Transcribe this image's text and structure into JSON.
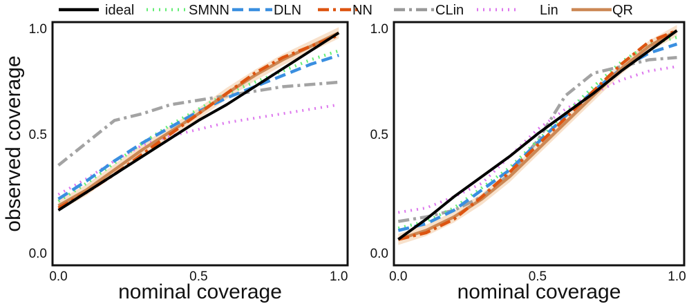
{
  "legend": [
    {
      "key": "ideal",
      "label": "ideal",
      "color": "#000000",
      "dash": "solid"
    },
    {
      "key": "smnn",
      "label": "SMNN",
      "color": "#66ee77",
      "dash": "dot"
    },
    {
      "key": "dln",
      "label": "DLN",
      "color": "#3a8fe0",
      "dash": "dash"
    },
    {
      "key": "nn",
      "label": "NN",
      "color": "#dd5511",
      "dash": "dashdot"
    },
    {
      "key": "clin",
      "label": "CLin",
      "color": "#999999",
      "dash": "dashdot"
    },
    {
      "key": "lin",
      "label": "Lin",
      "color": "#dd77ee",
      "dash": "dot"
    },
    {
      "key": "qr",
      "label": "QR",
      "color": "#cc8855",
      "dash": "solid"
    }
  ],
  "chart_data": [
    {
      "type": "line",
      "panel": "left",
      "title": "",
      "xlabel": "nominal coverage",
      "ylabel": "observed  coverage",
      "xlim": [
        0,
        1
      ],
      "ylim": [
        0,
        1
      ],
      "xticks": [
        "0.0",
        "0.5",
        "1.0"
      ],
      "yticks": [
        "0.0",
        "0.5",
        "1.0"
      ],
      "x": [
        0.0,
        0.1,
        0.2,
        0.3,
        0.4,
        0.5,
        0.6,
        0.7,
        0.8,
        0.9,
        1.0
      ],
      "series": [
        {
          "key": "clin",
          "name": "CLin",
          "values": [
            0.39,
            0.49,
            0.59,
            0.62,
            0.66,
            0.68,
            0.7,
            0.72,
            0.74,
            0.75,
            0.76
          ]
        },
        {
          "key": "lin",
          "name": "Lin",
          "values": [
            0.26,
            0.33,
            0.41,
            0.48,
            0.52,
            0.55,
            0.58,
            0.6,
            0.62,
            0.64,
            0.66
          ]
        },
        {
          "key": "smnn",
          "name": "SMNN",
          "values": [
            0.23,
            0.31,
            0.4,
            0.49,
            0.57,
            0.64,
            0.71,
            0.76,
            0.81,
            0.86,
            0.9
          ]
        },
        {
          "key": "dln",
          "name": "DLN",
          "values": [
            0.24,
            0.32,
            0.41,
            0.49,
            0.56,
            0.63,
            0.69,
            0.74,
            0.79,
            0.84,
            0.88
          ]
        },
        {
          "key": "qr",
          "name": "QR",
          "values": [
            0.21,
            0.28,
            0.37,
            0.46,
            0.54,
            0.62,
            0.71,
            0.79,
            0.86,
            0.92,
            0.98
          ]
        },
        {
          "key": "nn",
          "name": "NN",
          "values": [
            0.2,
            0.27,
            0.35,
            0.44,
            0.53,
            0.62,
            0.71,
            0.8,
            0.87,
            0.92,
            0.97
          ]
        },
        {
          "key": "ideal",
          "name": "ideal",
          "values": [
            0.19,
            0.27,
            0.35,
            0.43,
            0.51,
            0.59,
            0.66,
            0.74,
            0.82,
            0.9,
            0.98
          ]
        }
      ]
    },
    {
      "type": "line",
      "panel": "right",
      "title": "",
      "xlabel": "nominal coverage",
      "ylabel": "",
      "xlim": [
        0,
        1
      ],
      "ylim": [
        0,
        1
      ],
      "xticks": [
        "0.0",
        "0.5",
        "1.0"
      ],
      "yticks": [
        "0.0",
        "0.5",
        "1.0"
      ],
      "x": [
        0.0,
        0.1,
        0.2,
        0.3,
        0.4,
        0.5,
        0.6,
        0.7,
        0.8,
        0.9,
        1.0
      ],
      "series": [
        {
          "key": "clin",
          "name": "CLin",
          "values": [
            0.14,
            0.16,
            0.19,
            0.25,
            0.35,
            0.5,
            0.7,
            0.8,
            0.83,
            0.86,
            0.87
          ]
        },
        {
          "key": "lin",
          "name": "Lin",
          "values": [
            0.18,
            0.2,
            0.25,
            0.31,
            0.43,
            0.55,
            0.64,
            0.71,
            0.77,
            0.81,
            0.83
          ]
        },
        {
          "key": "smnn",
          "name": "SMNN",
          "values": [
            0.11,
            0.14,
            0.2,
            0.29,
            0.38,
            0.5,
            0.62,
            0.74,
            0.85,
            0.93,
            0.96
          ]
        },
        {
          "key": "dln",
          "name": "DLN",
          "values": [
            0.1,
            0.13,
            0.19,
            0.28,
            0.37,
            0.49,
            0.61,
            0.72,
            0.82,
            0.89,
            0.93
          ]
        },
        {
          "key": "qr",
          "name": "QR",
          "values": [
            0.06,
            0.1,
            0.16,
            0.24,
            0.34,
            0.46,
            0.58,
            0.7,
            0.82,
            0.92,
            0.99
          ]
        },
        {
          "key": "nn",
          "name": "NN",
          "values": [
            0.06,
            0.09,
            0.15,
            0.25,
            0.36,
            0.48,
            0.6,
            0.72,
            0.84,
            0.94,
            0.99
          ]
        },
        {
          "key": "ideal",
          "name": "ideal",
          "values": [
            0.06,
            0.15,
            0.25,
            0.34,
            0.43,
            0.53,
            0.62,
            0.71,
            0.81,
            0.9,
            0.99
          ]
        }
      ]
    }
  ]
}
